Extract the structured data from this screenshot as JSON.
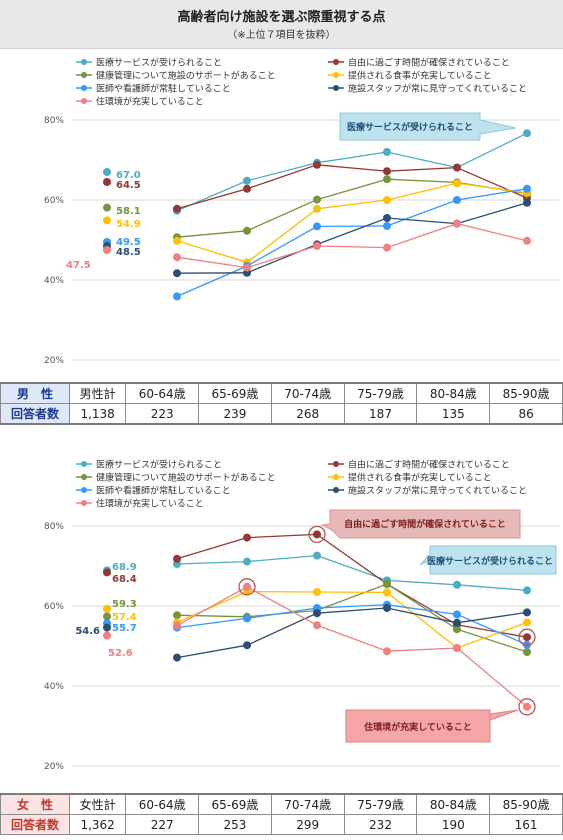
{
  "title": "高齢者向け施設を選ぶ際重視する点",
  "subtitle": "（※上位７項目を抜粋）",
  "categories": [
    "男性計",
    "60-64歳",
    "65-69歳",
    "70-74歳",
    "75-79歳",
    "80-84歳",
    "85-90歳"
  ],
  "colors": {
    "iryo": "#4bacc6",
    "jiyu": "#953735",
    "kenko": "#77933c",
    "shokuji": "#ffc000",
    "ishi": "#3399ff",
    "staff": "#2c4d75",
    "kankyo": "#f07f7f"
  },
  "chart_data": [
    {
      "type": "line",
      "group": "男性",
      "ylim": [
        20,
        80
      ],
      "yticks": [
        "20%",
        "40%",
        "60%",
        "80%"
      ],
      "categories": [
        "男性計",
        "60-64歳",
        "65-69歳",
        "70-74歳",
        "75-79歳",
        "80-84歳",
        "85-90歳"
      ],
      "series": [
        {
          "key": "iryo",
          "name": "医療サービスが受けられること",
          "values": [
            67.0,
            57.3,
            64.8,
            69.3,
            72.0,
            68.1,
            76.7
          ]
        },
        {
          "key": "jiyu",
          "name": "自由に過ごす時間が確保されていること",
          "values": [
            64.5,
            57.8,
            62.8,
            68.8,
            67.2,
            68.1,
            60.5
          ]
        },
        {
          "key": "kenko",
          "name": "健康管理について施設のサポートがあること",
          "values": [
            58.1,
            50.7,
            52.3,
            60.1,
            65.2,
            64.4,
            61.6
          ]
        },
        {
          "key": "shokuji",
          "name": "提供される食事が充実していること",
          "values": [
            54.9,
            49.8,
            44.4,
            57.8,
            60.0,
            64.2,
            61.8
          ]
        },
        {
          "key": "ishi",
          "name": "医師や看護師が常駐していること",
          "values": [
            49.5,
            35.9,
            43.5,
            53.4,
            53.5,
            60.0,
            62.8
          ]
        },
        {
          "key": "staff",
          "name": "施設スタッフが常に見守ってくれていること",
          "values": [
            48.5,
            41.7,
            41.8,
            48.9,
            55.5,
            54.1,
            59.3
          ]
        },
        {
          "key": "kankyo",
          "name": "住環境が充実していること",
          "values": [
            47.5,
            45.7,
            43.1,
            48.5,
            48.1,
            54.1,
            49.8
          ]
        }
      ],
      "total_labels": [
        "67.0",
        "64.5",
        "58.1",
        "54.9",
        "49.5",
        "48.5",
        "47.5"
      ],
      "callouts": [
        "医療サービスが受けられること"
      ],
      "respondents": {
        "label_sex": "男　性",
        "label_count": "回答者数",
        "values": [
          "1,138",
          "223",
          "239",
          "268",
          "187",
          "135",
          "86"
        ]
      }
    },
    {
      "type": "line",
      "group": "女性",
      "ylim": [
        20,
        80
      ],
      "yticks": [
        "20%",
        "40%",
        "60%",
        "80%"
      ],
      "categories": [
        "女性計",
        "60-64歳",
        "65-69歳",
        "70-74歳",
        "75-79歳",
        "80-84歳",
        "85-90歳"
      ],
      "series": [
        {
          "key": "iryo",
          "name": "医療サービスが受けられること",
          "values": [
            68.9,
            70.5,
            71.1,
            72.6,
            66.4,
            65.3,
            63.9
          ]
        },
        {
          "key": "jiyu",
          "name": "自由に過ごす時間が確保されていること",
          "values": [
            68.4,
            71.8,
            77.1,
            77.9,
            65.5,
            55.3,
            52.2
          ]
        },
        {
          "key": "kenko",
          "name": "健康管理について施設のサポートがあること",
          "values": [
            57.4,
            57.7,
            57.3,
            58.9,
            65.5,
            54.2,
            48.5
          ]
        },
        {
          "key": "shokuji",
          "name": "提供される食事が充実していること",
          "values": [
            59.3,
            55.9,
            63.6,
            63.5,
            63.4,
            49.5,
            55.9
          ]
        },
        {
          "key": "ishi",
          "name": "医師や看護師が常駐していること",
          "values": [
            55.7,
            54.6,
            56.9,
            59.5,
            60.3,
            57.9,
            50.3
          ]
        },
        {
          "key": "staff",
          "name": "施設スタッフが常に見守ってくれていること",
          "values": [
            54.6,
            47.1,
            50.2,
            58.2,
            59.5,
            55.8,
            58.4
          ]
        },
        {
          "key": "kankyo",
          "name": "住環境が充実していること",
          "values": [
            52.6,
            55.1,
            64.8,
            55.2,
            48.7,
            49.5,
            34.8
          ]
        }
      ],
      "total_labels": [
        "68.9",
        "68.4",
        "59.3",
        "57.4",
        "55.7",
        "54.6",
        "52.6"
      ],
      "callouts": [
        "自由に過ごす時間が確保されていること",
        "医療サービスが受けられること",
        "住環境が充実していること"
      ],
      "respondents": {
        "label_sex": "女　性",
        "label_count": "回答者数",
        "values": [
          "1,362",
          "227",
          "253",
          "299",
          "232",
          "190",
          "161"
        ]
      }
    }
  ],
  "female_first_header": "女性計"
}
